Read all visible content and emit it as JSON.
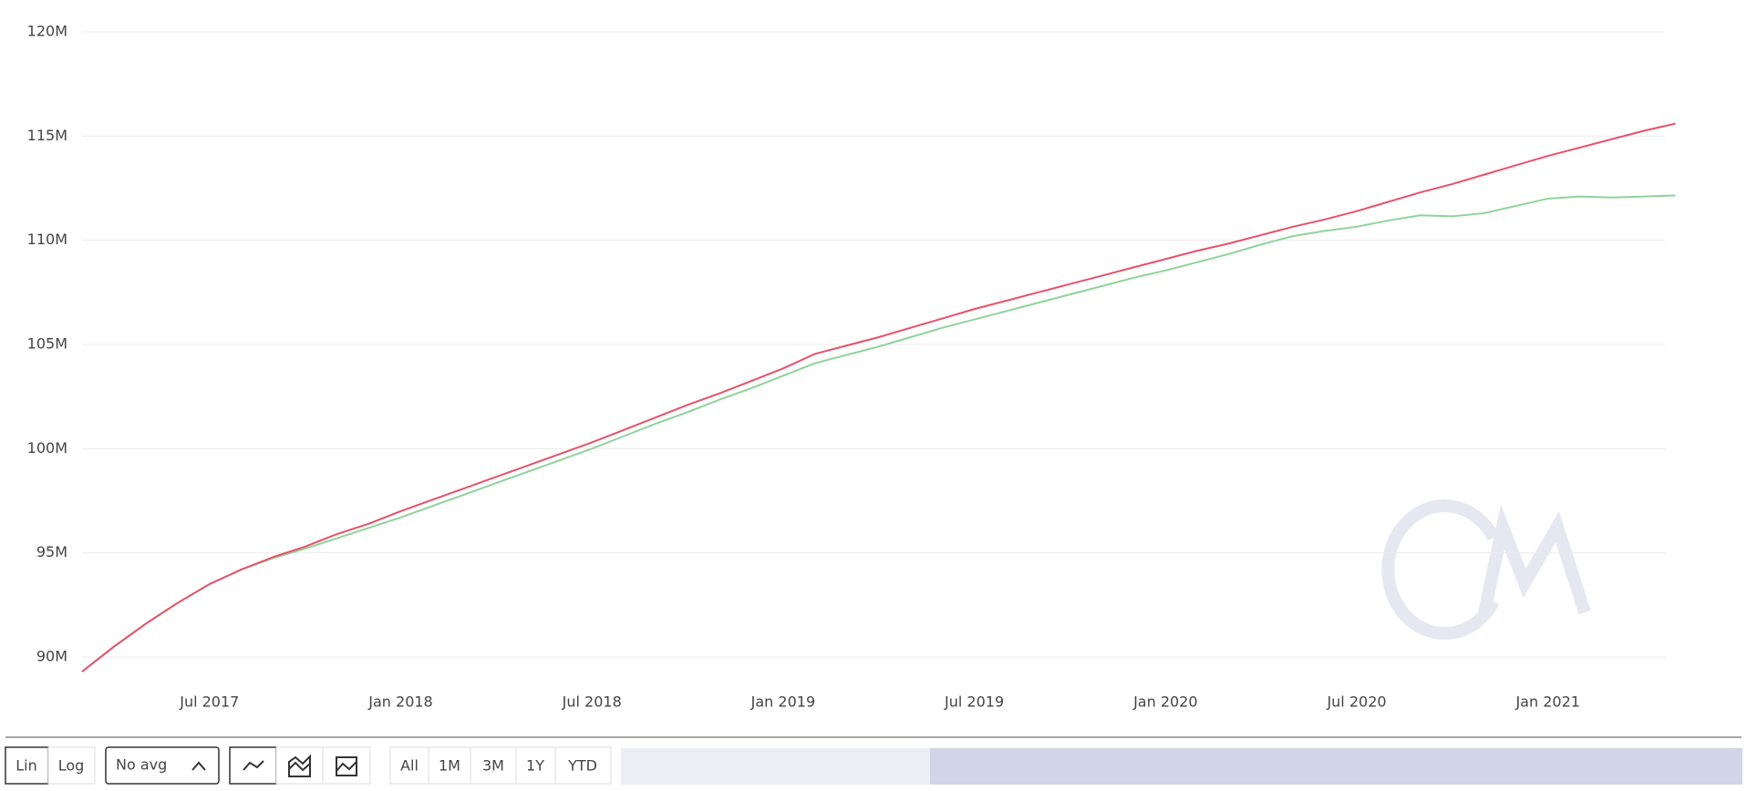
{
  "chart_data": {
    "type": "line",
    "x": [
      "2017-03",
      "2017-04",
      "2017-05",
      "2017-06",
      "2017-07",
      "2017-08",
      "2017-09",
      "2017-10",
      "2017-11",
      "2017-12",
      "2018-01",
      "2018-02",
      "2018-03",
      "2018-04",
      "2018-05",
      "2018-06",
      "2018-07",
      "2018-08",
      "2018-09",
      "2018-10",
      "2018-11",
      "2018-12",
      "2019-01",
      "2019-02",
      "2019-03",
      "2019-04",
      "2019-05",
      "2019-06",
      "2019-07",
      "2019-08",
      "2019-09",
      "2019-10",
      "2019-11",
      "2019-12",
      "2020-01",
      "2020-02",
      "2020-03",
      "2020-04",
      "2020-05",
      "2020-06",
      "2020-07",
      "2020-08",
      "2020-09",
      "2020-10",
      "2020-11",
      "2020-12",
      "2021-01",
      "2021-02",
      "2021-03",
      "2021-04",
      "2021-05"
    ],
    "series": [
      {
        "color": "#e8516a",
        "values": [
          89.3,
          90.5,
          91.6,
          92.6,
          93.5,
          94.2,
          94.8,
          95.3,
          95.9,
          96.4,
          97.0,
          97.55,
          98.1,
          98.65,
          99.2,
          99.75,
          100.3,
          100.9,
          101.5,
          102.1,
          102.65,
          103.25,
          103.85,
          104.55,
          104.95,
          105.35,
          105.8,
          106.25,
          106.7,
          107.1,
          107.5,
          107.9,
          108.3,
          108.7,
          109.1,
          109.5,
          109.85,
          110.25,
          110.65,
          111.0,
          111.4,
          111.85,
          112.3,
          112.7,
          113.15,
          113.6,
          114.05,
          114.45,
          114.85,
          115.25,
          115.6
        ]
      },
      {
        "color": "#8fd39a",
        "values": [
          89.3,
          90.5,
          91.6,
          92.6,
          93.5,
          94.2,
          94.75,
          95.2,
          95.7,
          96.2,
          96.7,
          97.25,
          97.8,
          98.35,
          98.9,
          99.45,
          100.0,
          100.6,
          101.2,
          101.75,
          102.35,
          102.9,
          103.5,
          104.1,
          104.5,
          104.9,
          105.35,
          105.8,
          106.2,
          106.6,
          107.0,
          107.4,
          107.8,
          108.2,
          108.55,
          108.95,
          109.35,
          109.8,
          110.2,
          110.45,
          110.65,
          110.95,
          111.2,
          111.15,
          111.3,
          111.65,
          112.0,
          112.1,
          112.05,
          112.1,
          112.15
        ]
      }
    ],
    "xlim": [
      "2017-03",
      "2021-05"
    ],
    "xticks": [
      {
        "value": "2017-07",
        "label": "Jul 2017"
      },
      {
        "value": "2018-01",
        "label": "Jan 2018"
      },
      {
        "value": "2018-07",
        "label": "Jul 2018"
      },
      {
        "value": "2019-01",
        "label": "Jan 2019"
      },
      {
        "value": "2019-07",
        "label": "Jul 2019"
      },
      {
        "value": "2020-01",
        "label": "Jan 2020"
      },
      {
        "value": "2020-07",
        "label": "Jul 2020"
      },
      {
        "value": "2021-01",
        "label": "Jan 2021"
      }
    ],
    "ylim": [
      89.2,
      120
    ],
    "yticks": [
      {
        "value": 90,
        "label": "90M"
      },
      {
        "value": 95,
        "label": "95M"
      },
      {
        "value": 100,
        "label": "100M"
      },
      {
        "value": 105,
        "label": "105M"
      },
      {
        "value": 110,
        "label": "110M"
      },
      {
        "value": 115,
        "label": "115M"
      },
      {
        "value": 120,
        "label": "120M"
      }
    ],
    "grid": true
  },
  "toolbar": {
    "scale": [
      "Lin",
      "Log"
    ],
    "average": "No avg",
    "ranges": [
      "All",
      "1M",
      "3M",
      "1Y",
      "YTD"
    ]
  }
}
